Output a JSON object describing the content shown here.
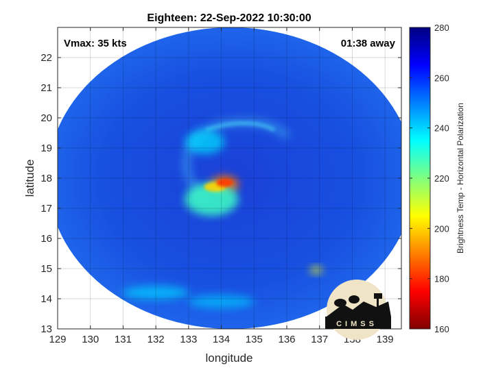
{
  "chart_data": {
    "type": "heatmap",
    "title": "Eighteen: 22-Sep-2022 10:30:00",
    "xlabel": "longitude",
    "ylabel": "latitude",
    "xlim": [
      129,
      139.5
    ],
    "ylim": [
      13,
      23
    ],
    "xticks": [
      129,
      130,
      131,
      132,
      133,
      134,
      135,
      136,
      137,
      138,
      139
    ],
    "yticks": [
      13,
      14,
      15,
      16,
      17,
      18,
      19,
      20,
      21,
      22
    ],
    "grid": true,
    "annotations": {
      "vmax": "Vmax: 35 kts",
      "time_away": "01:38 away"
    },
    "colorbar": {
      "label": "Brightness Temp - Horizontal Polarization",
      "range": [
        160,
        280
      ],
      "ticks": [
        160,
        180,
        200,
        220,
        240,
        260,
        280
      ],
      "colormap": "jet"
    },
    "swath": {
      "center": [
        134.3,
        18.0
      ],
      "radius_lon": 5.6,
      "radius_lat": 5.0
    },
    "features": [
      {
        "lon": 134.1,
        "lat": 17.8,
        "value": 188
      },
      {
        "lon": 133.7,
        "lat": 17.3,
        "value": 228
      },
      {
        "lon": 133.5,
        "lat": 19.2,
        "value": 238
      },
      {
        "lon": 136.9,
        "lat": 14.95,
        "value": 205
      },
      {
        "lon": 132.0,
        "lat": 14.2,
        "value": 240
      },
      {
        "lon": 134.0,
        "lat": 13.9,
        "value": 242
      }
    ]
  },
  "logo": {
    "text": "CIMSS"
  }
}
